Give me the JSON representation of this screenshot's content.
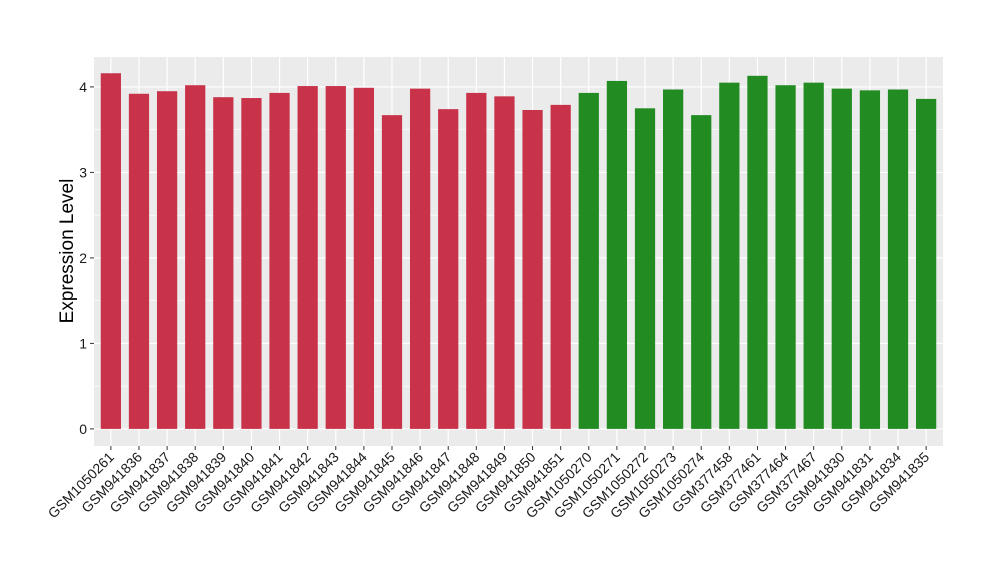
{
  "chart_data": {
    "type": "bar",
    "title": "",
    "xlabel": "",
    "ylabel": "Expression Level",
    "ylim": [
      -0.2,
      4.35
    ],
    "yticks": [
      0,
      1,
      2,
      3,
      4
    ],
    "ytick_labels": [
      "0",
      "1",
      "2",
      "3",
      "4"
    ],
    "grid": true,
    "legend": "none",
    "categories": [
      "GSM1050261",
      "GSM941836",
      "GSM941837",
      "GSM941838",
      "GSM941839",
      "GSM941840",
      "GSM941841",
      "GSM941842",
      "GSM941843",
      "GSM941844",
      "GSM941845",
      "GSM941846",
      "GSM941847",
      "GSM941848",
      "GSM941849",
      "GSM941850",
      "GSM941851",
      "GSM1050270",
      "GSM1050271",
      "GSM1050272",
      "GSM1050273",
      "GSM1050274",
      "GSM377458",
      "GSM377461",
      "GSM377464",
      "GSM377467",
      "GSM941830",
      "GSM941831",
      "GSM941834",
      "GSM941835"
    ],
    "values": [
      4.16,
      3.92,
      3.95,
      4.02,
      3.88,
      3.87,
      3.93,
      4.01,
      4.01,
      3.99,
      3.67,
      3.98,
      3.74,
      3.93,
      3.89,
      3.73,
      3.79,
      3.93,
      4.07,
      3.75,
      3.97,
      3.67,
      4.05,
      4.13,
      4.02,
      4.05,
      3.98,
      3.96,
      3.97,
      3.86
    ],
    "groups": [
      "a",
      "a",
      "a",
      "a",
      "a",
      "a",
      "a",
      "a",
      "a",
      "a",
      "a",
      "a",
      "a",
      "a",
      "a",
      "a",
      "a",
      "b",
      "b",
      "b",
      "b",
      "b",
      "b",
      "b",
      "b",
      "b",
      "b",
      "b",
      "b",
      "b"
    ],
    "group_colors": {
      "a": "#c8334a",
      "b": "#228b22"
    },
    "panel_background": "#ebebeb",
    "gridline_color": "#ffffff"
  }
}
